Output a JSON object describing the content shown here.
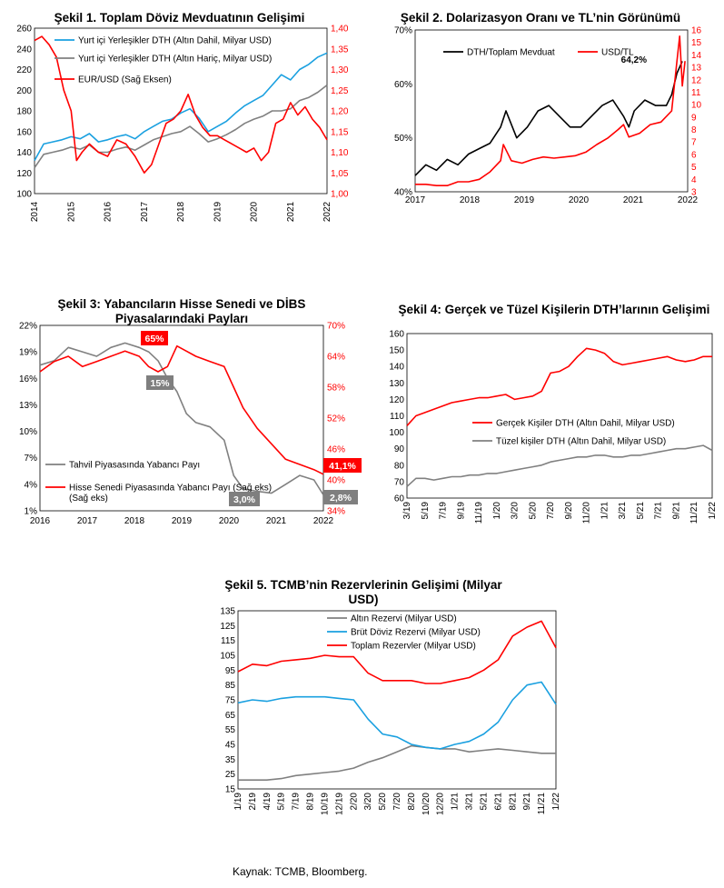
{
  "source_note": "Kaynak: TCMB, Bloomberg.",
  "chart_data": [
    {
      "type": "line",
      "title": "Şekil 1. Toplam Döviz Mevduatının Gelişimi",
      "x_ticks": [
        "2014",
        "2015",
        "2016",
        "2017",
        "2018",
        "2019",
        "2020",
        "2021",
        "2022"
      ],
      "x_range": [
        2014,
        2022
      ],
      "y_left": {
        "ticks": [
          "100",
          "120",
          "140",
          "160",
          "180",
          "200",
          "220",
          "240",
          "260"
        ],
        "range": [
          100,
          260
        ]
      },
      "y_right": {
        "ticks": [
          "1,00",
          "1,05",
          "1,10",
          "1,15",
          "1,20",
          "1,25",
          "1,30",
          "1,35",
          "1,40"
        ],
        "range": [
          1.0,
          1.4
        ],
        "color": "#ff0000"
      },
      "legend_position": "top-left",
      "series": [
        {
          "name": "Yurt içi Yerleşikler DTH (Altın Dahil, Milyar USD)",
          "color": "#1aa0e0",
          "axis": "left",
          "x": [
            2014.0,
            2014.25,
            2014.5,
            2014.75,
            2015.0,
            2015.25,
            2015.5,
            2015.75,
            2016.0,
            2016.25,
            2016.5,
            2016.75,
            2017.0,
            2017.25,
            2017.5,
            2017.75,
            2018.0,
            2018.25,
            2018.5,
            2018.75,
            2019.0,
            2019.25,
            2019.5,
            2019.75,
            2020.0,
            2020.25,
            2020.5,
            2020.75,
            2021.0,
            2021.25,
            2021.5,
            2021.75,
            2022.0
          ],
          "y": [
            132,
            148,
            150,
            152,
            155,
            153,
            158,
            150,
            152,
            155,
            157,
            153,
            160,
            165,
            170,
            172,
            178,
            182,
            173,
            160,
            165,
            170,
            178,
            185,
            190,
            195,
            205,
            215,
            210,
            220,
            225,
            232,
            236
          ]
        },
        {
          "name": "Yurt içi Yerleşikler DTH (Altın Hariç, Milyar USD)",
          "color": "#808080",
          "axis": "left",
          "x": [
            2014.0,
            2014.25,
            2014.5,
            2014.75,
            2015.0,
            2015.25,
            2015.5,
            2015.75,
            2016.0,
            2016.25,
            2016.5,
            2016.75,
            2017.0,
            2017.25,
            2017.5,
            2017.75,
            2018.0,
            2018.25,
            2018.5,
            2018.75,
            2019.0,
            2019.25,
            2019.5,
            2019.75,
            2020.0,
            2020.25,
            2020.5,
            2020.75,
            2021.0,
            2021.25,
            2021.5,
            2021.75,
            2022.0
          ],
          "y": [
            125,
            138,
            140,
            142,
            145,
            143,
            147,
            140,
            140,
            143,
            145,
            142,
            147,
            152,
            155,
            158,
            160,
            165,
            158,
            150,
            153,
            157,
            162,
            168,
            172,
            175,
            180,
            180,
            182,
            190,
            193,
            198,
            205
          ]
        },
        {
          "name": "EUR/USD (Sağ Eksen)",
          "color": "#ff0000",
          "axis": "right",
          "x": [
            2014.0,
            2014.2,
            2014.4,
            2014.6,
            2014.8,
            2015.0,
            2015.15,
            2015.3,
            2015.5,
            2015.75,
            2016.0,
            2016.25,
            2016.5,
            2016.75,
            2017.0,
            2017.2,
            2017.4,
            2017.6,
            2017.8,
            2018.0,
            2018.2,
            2018.4,
            2018.6,
            2018.8,
            2019.0,
            2019.2,
            2019.4,
            2019.6,
            2019.8,
            2020.0,
            2020.2,
            2020.4,
            2020.6,
            2020.8,
            2021.0,
            2021.2,
            2021.4,
            2021.6,
            2021.8,
            2022.0
          ],
          "y": [
            1.37,
            1.38,
            1.36,
            1.33,
            1.25,
            1.2,
            1.08,
            1.1,
            1.12,
            1.1,
            1.09,
            1.13,
            1.12,
            1.09,
            1.05,
            1.07,
            1.12,
            1.17,
            1.18,
            1.2,
            1.24,
            1.19,
            1.16,
            1.14,
            1.14,
            1.13,
            1.12,
            1.11,
            1.1,
            1.11,
            1.08,
            1.1,
            1.17,
            1.18,
            1.22,
            1.19,
            1.21,
            1.18,
            1.16,
            1.13
          ]
        }
      ]
    },
    {
      "type": "line",
      "title": "Şekil 2. Dolarizasyon Oranı ve TL’nin Görünümü",
      "x_ticks": [
        "2017",
        "2018",
        "2019",
        "2020",
        "2021",
        "2022"
      ],
      "x_range": [
        2017,
        2022.1
      ],
      "y_left": {
        "ticks": [
          "40%",
          "50%",
          "60%",
          "70%"
        ],
        "range": [
          40,
          70
        ]
      },
      "y_right": {
        "ticks": [
          "3",
          "4",
          "5",
          "6",
          "7",
          "8",
          "9",
          "10",
          "11",
          "12",
          "13",
          "14",
          "15",
          "16"
        ],
        "range": [
          3,
          16
        ],
        "color": "#ff0000"
      },
      "annotation": "64,2%",
      "legend_position": "top",
      "series": [
        {
          "name": "DTH/Toplam Mevduat",
          "color": "#000000",
          "axis": "left",
          "x": [
            2017.0,
            2017.2,
            2017.4,
            2017.6,
            2017.8,
            2018.0,
            2018.2,
            2018.4,
            2018.6,
            2018.7,
            2018.9,
            2019.1,
            2019.3,
            2019.5,
            2019.7,
            2019.9,
            2020.1,
            2020.3,
            2020.5,
            2020.7,
            2020.9,
            2021.0,
            2021.1,
            2021.3,
            2021.5,
            2021.7,
            2021.8,
            2021.9,
            2022.0
          ],
          "y": [
            43,
            45,
            44,
            46,
            45,
            47,
            48,
            49,
            52,
            55,
            50,
            52,
            55,
            56,
            54,
            52,
            52,
            54,
            56,
            57,
            54,
            52,
            55,
            57,
            56,
            56,
            58,
            62,
            64.2
          ]
        },
        {
          "name": "USD/TL",
          "color": "#ff0000",
          "axis": "right",
          "x": [
            2017.0,
            2017.2,
            2017.4,
            2017.6,
            2017.8,
            2018.0,
            2018.2,
            2018.4,
            2018.6,
            2018.65,
            2018.8,
            2019.0,
            2019.2,
            2019.4,
            2019.6,
            2019.8,
            2020.0,
            2020.2,
            2020.4,
            2020.6,
            2020.8,
            2020.9,
            2021.0,
            2021.2,
            2021.4,
            2021.6,
            2021.8,
            2021.9,
            2021.95,
            2022.0,
            2022.05
          ],
          "y": [
            3.6,
            3.6,
            3.5,
            3.5,
            3.8,
            3.8,
            4.0,
            4.6,
            5.5,
            6.8,
            5.5,
            5.3,
            5.6,
            5.8,
            5.7,
            5.8,
            5.9,
            6.2,
            6.8,
            7.3,
            8.0,
            8.4,
            7.4,
            7.7,
            8.4,
            8.6,
            9.5,
            13.5,
            15.5,
            11.5,
            13.5
          ]
        }
      ]
    },
    {
      "type": "line",
      "title": "Şekil 3: Yabancıların Hisse Senedi ve DİBS Piyasalarındaki Payları",
      "x_ticks": [
        "2016",
        "2017",
        "2018",
        "2019",
        "2020",
        "2021",
        "2022"
      ],
      "x_range": [
        2016,
        2022
      ],
      "y_left": {
        "ticks": [
          "1%",
          "4%",
          "7%",
          "10%",
          "13%",
          "16%",
          "19%",
          "22%"
        ],
        "range": [
          1,
          22
        ]
      },
      "y_right": {
        "ticks": [
          "34%",
          "40%",
          "46%",
          "52%",
          "58%",
          "64%",
          "70%"
        ],
        "range": [
          34,
          70
        ],
        "color": "#ff0000"
      },
      "annotations": [
        "65%",
        "15%",
        "3,0%",
        "41,1%",
        "2,8%"
      ],
      "legend_position": "bottom-left",
      "series": [
        {
          "name": "Tahvil Piyasasında Yabancı Payı",
          "color": "#808080",
          "axis": "left",
          "x": [
            2016.0,
            2016.3,
            2016.6,
            2016.9,
            2017.2,
            2017.5,
            2017.8,
            2018.1,
            2018.3,
            2018.5,
            2018.7,
            2018.9,
            2019.1,
            2019.3,
            2019.6,
            2019.9,
            2020.1,
            2020.3,
            2020.6,
            2020.9,
            2021.2,
            2021.5,
            2021.8,
            2022.0
          ],
          "y": [
            17.5,
            18,
            19.5,
            19,
            18.5,
            19.5,
            20,
            19.5,
            19,
            18,
            16,
            14.5,
            12,
            11,
            10.5,
            9,
            5,
            3.5,
            3.2,
            3.0,
            4,
            5,
            4.5,
            2.8
          ]
        },
        {
          "name": "Hisse Senedi Piyasasında Yabancı Payı (Sağ eks)",
          "color": "#ff0000",
          "axis": "right",
          "x": [
            2016.0,
            2016.3,
            2016.6,
            2016.9,
            2017.2,
            2017.5,
            2017.8,
            2018.1,
            2018.3,
            2018.5,
            2018.7,
            2018.9,
            2019.1,
            2019.3,
            2019.6,
            2019.9,
            2020.1,
            2020.3,
            2020.6,
            2020.9,
            2021.2,
            2021.5,
            2021.8,
            2022.0
          ],
          "y": [
            61,
            63,
            64,
            62,
            63,
            64,
            65,
            64,
            62,
            61,
            62,
            66,
            65,
            64,
            63,
            62,
            58,
            54,
            50,
            47,
            44,
            43,
            42,
            41.1
          ]
        }
      ]
    },
    {
      "type": "line",
      "title": "Şekil 4: Gerçek ve Tüzel Kişilerin DTH’larının Gelişimi",
      "x_ticks": [
        "3/19",
        "5/19",
        "7/19",
        "9/19",
        "11/19",
        "1/20",
        "3/20",
        "5/20",
        "7/20",
        "9/20",
        "11/20",
        "1/21",
        "3/21",
        "5/21",
        "7/21",
        "9/21",
        "11/21",
        "1/22"
      ],
      "y_left": {
        "ticks": [
          "60",
          "70",
          "80",
          "90",
          "100",
          "110",
          "120",
          "130",
          "140",
          "150",
          "160"
        ],
        "range": [
          60,
          160
        ]
      },
      "legend_position": "center-right",
      "series": [
        {
          "name": "Gerçek Kişiler DTH (Altın Dahil, Milyar USD)",
          "color": "#ff0000",
          "x": [
            0,
            1,
            2,
            3,
            4,
            5,
            6,
            7,
            8,
            9,
            10,
            11,
            12,
            13,
            14,
            15,
            16,
            17,
            18,
            19,
            20,
            21,
            22,
            23,
            24,
            25,
            26,
            27,
            28,
            29,
            30,
            31,
            32,
            33,
            34
          ],
          "y": [
            104,
            110,
            112,
            114,
            116,
            118,
            119,
            120,
            121,
            121,
            122,
            123,
            120,
            121,
            122,
            125,
            136,
            137,
            140,
            146,
            151,
            150,
            148,
            143,
            141,
            142,
            143,
            144,
            145,
            146,
            144,
            143,
            144,
            146,
            146
          ]
        },
        {
          "name": "Tüzel kişiler DTH (Altın Dahil, Milyar USD)",
          "color": "#808080",
          "x": [
            0,
            1,
            2,
            3,
            4,
            5,
            6,
            7,
            8,
            9,
            10,
            11,
            12,
            13,
            14,
            15,
            16,
            17,
            18,
            19,
            20,
            21,
            22,
            23,
            24,
            25,
            26,
            27,
            28,
            29,
            30,
            31,
            32,
            33,
            34
          ],
          "y": [
            67,
            72,
            72,
            71,
            72,
            73,
            73,
            74,
            74,
            75,
            75,
            76,
            77,
            78,
            79,
            80,
            82,
            83,
            84,
            85,
            85,
            86,
            86,
            85,
            85,
            86,
            86,
            87,
            88,
            89,
            90,
            90,
            91,
            92,
            89
          ]
        }
      ]
    },
    {
      "type": "line",
      "title": "Şekil 5. TCMB’nin Rezervlerinin Gelişimi (Milyar USD)",
      "x_ticks": [
        "1/19",
        "2/19",
        "4/19",
        "5/19",
        "7/19",
        "8/19",
        "10/19",
        "12/19",
        "2/20",
        "3/20",
        "5/20",
        "7/20",
        "8/20",
        "10/20",
        "12/20",
        "1/21",
        "3/21",
        "5/21",
        "6/21",
        "8/21",
        "9/21",
        "11/21",
        "1/22"
      ],
      "y_left": {
        "ticks": [
          "15",
          "25",
          "35",
          "45",
          "55",
          "65",
          "75",
          "85",
          "95",
          "105",
          "115",
          "125",
          "135"
        ],
        "range": [
          15,
          135
        ]
      },
      "legend_position": "top-center",
      "series": [
        {
          "name": "Altın Rezervi (Milyar USD)",
          "color": "#808080",
          "x": [
            0,
            1,
            2,
            3,
            4,
            5,
            6,
            7,
            8,
            9,
            10,
            11,
            12,
            13,
            14,
            15,
            16,
            17,
            18,
            19,
            20,
            21,
            22
          ],
          "y": [
            21,
            21,
            21,
            22,
            24,
            25,
            26,
            27,
            29,
            33,
            36,
            40,
            44,
            43,
            42,
            42,
            40,
            41,
            42,
            41,
            40,
            39,
            39
          ]
        },
        {
          "name": "Brüt Döviz Rezervi (Milyar USD)",
          "color": "#1aa0e0",
          "x": [
            0,
            1,
            2,
            3,
            4,
            5,
            6,
            7,
            8,
            9,
            10,
            11,
            12,
            13,
            14,
            15,
            16,
            17,
            18,
            19,
            20,
            21,
            22
          ],
          "y": [
            73,
            75,
            74,
            76,
            77,
            77,
            77,
            76,
            75,
            62,
            52,
            50,
            45,
            43,
            42,
            45,
            47,
            52,
            60,
            75,
            85,
            87,
            72
          ]
        },
        {
          "name": "Toplam Rezervler (Milyar USD)",
          "color": "#ff0000",
          "x": [
            0,
            1,
            2,
            3,
            4,
            5,
            6,
            7,
            8,
            9,
            10,
            11,
            12,
            13,
            14,
            15,
            16,
            17,
            18,
            19,
            20,
            21,
            22
          ],
          "y": [
            94,
            99,
            98,
            101,
            102,
            103,
            105,
            104,
            104,
            93,
            88,
            88,
            88,
            86,
            86,
            88,
            90,
            95,
            102,
            118,
            124,
            128,
            110
          ]
        }
      ]
    }
  ]
}
